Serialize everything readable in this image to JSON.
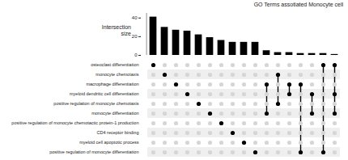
{
  "chart_data": {
    "type": "upset",
    "title": "GO Terms assotiated Monocyte cell",
    "y_label": "Intersection size",
    "sets": [
      "osteoclast differentiation",
      "monocyte chemotaxis",
      "macrophage differentiation",
      "myeloid dendritic cell differentiation",
      "positive regulation of monocyte chemotaxis",
      "monocyte differentiation",
      "positive regulation of monocyte chemotactic protein-1 production",
      "CD4 receptor binding",
      "myeloid cell apoptotic process",
      "positive regulation of monocyte differentiation"
    ],
    "intersections": [
      {
        "sets": [
          "osteoclast differentiation"
        ],
        "value": 41
      },
      {
        "sets": [
          "monocyte chemotaxis"
        ],
        "value": 30
      },
      {
        "sets": [
          "macrophage differentiation"
        ],
        "value": 27
      },
      {
        "sets": [
          "myeloid dendritic cell differentiation"
        ],
        "value": 26
      },
      {
        "sets": [
          "positive regulation of monocyte chemotaxis"
        ],
        "value": 22
      },
      {
        "sets": [
          "monocyte differentiation"
        ],
        "value": 19
      },
      {
        "sets": [
          "positive regulation of monocyte chemotactic protein-1 production"
        ],
        "value": 16
      },
      {
        "sets": [
          "CD4 receptor binding"
        ],
        "value": 14
      },
      {
        "sets": [
          "myeloid cell apoptotic process"
        ],
        "value": 14
      },
      {
        "sets": [
          "positive regulation of monocyte differentiation"
        ],
        "value": 14
      },
      {
        "sets": [
          "macrophage differentiation",
          "monocyte differentiation"
        ],
        "value": 5
      },
      {
        "sets": [
          "monocyte chemotaxis",
          "positive regulation of monocyte chemotaxis"
        ],
        "value": 3
      },
      {
        "sets": [
          "macrophage differentiation",
          "myeloid dendritic cell differentiation"
        ],
        "value": 3
      },
      {
        "sets": [
          "macrophage differentiation",
          "positive regulation of monocyte differentiation"
        ],
        "value": 2
      },
      {
        "sets": [
          "myeloid dendritic cell differentiation",
          "monocyte differentiation"
        ],
        "value": 2
      },
      {
        "sets": [
          "osteoclast differentiation",
          "positive regulation of monocyte differentiation"
        ],
        "value": 2
      },
      {
        "sets": [
          "osteoclast differentiation",
          "myeloid dendritic cell differentiation",
          "monocyte differentiation"
        ],
        "value": 1
      }
    ],
    "ylim": [
      0,
      45
    ],
    "yticks": [
      0,
      20,
      40
    ],
    "color": "#000000"
  }
}
